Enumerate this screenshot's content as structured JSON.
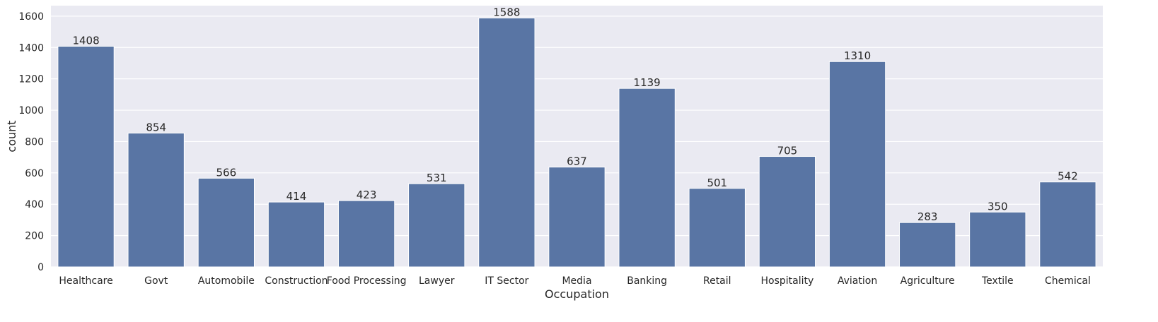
{
  "chart_data": {
    "type": "bar",
    "xlabel": "Occupation",
    "ylabel": "count",
    "categories": [
      "Healthcare",
      "Govt",
      "Automobile",
      "Construction",
      "Food Processing",
      "Lawyer",
      "IT Sector",
      "Media",
      "Banking",
      "Retail",
      "Hospitality",
      "Aviation",
      "Agriculture",
      "Textile",
      "Chemical"
    ],
    "values": [
      1408,
      854,
      566,
      414,
      423,
      531,
      1588,
      637,
      1139,
      501,
      705,
      1310,
      283,
      350,
      542
    ],
    "ylim": [
      0,
      1667
    ],
    "yticks": [
      0,
      200,
      400,
      600,
      800,
      1000,
      1200,
      1400,
      1600
    ],
    "grid": true,
    "legend": "none",
    "colors": {
      "bar": "#5975a4",
      "plot_background": "#eaeaf2",
      "grid": "#ffffff",
      "text": "#262626"
    }
  }
}
